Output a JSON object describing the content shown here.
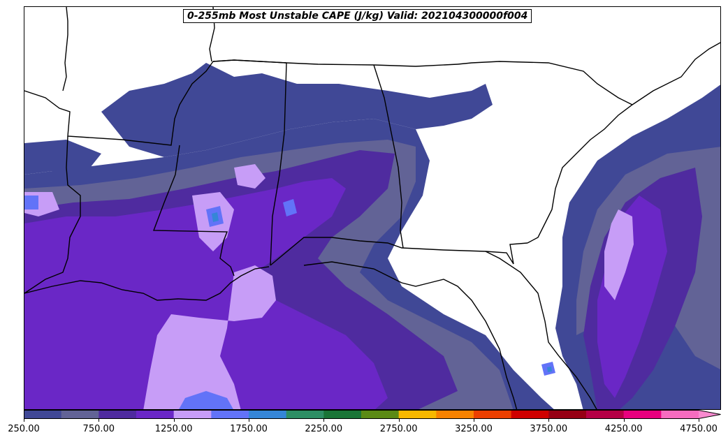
{
  "title": "0-255mb Most Unstable CAPE (J/kg) Valid: 202104300000f004",
  "colorbar": {
    "colors": [
      "#404896",
      "#626396",
      "#4f2b9f",
      "#6a27c6",
      "#c79df7",
      "#6273f8",
      "#3586d7",
      "#2e8e64",
      "#1a7436",
      "#5b8a15",
      "#f8b800",
      "#f88200",
      "#ec3f00",
      "#cf0000",
      "#960014",
      "#b50045",
      "#e8007e",
      "#f66cbf"
    ],
    "extend_color": "#f98bd0",
    "tick_labels": [
      "250.00",
      "750.00",
      "1250.00",
      "1750.00",
      "2250.00",
      "2750.00",
      "3250.00",
      "3750.00",
      "4250.00",
      "4750.00"
    ]
  },
  "map_colors": {
    "c250": "#404896",
    "c500": "#626396",
    "c750": "#4f2b9f",
    "c1000": "#6a27c6",
    "c1250": "#c79df7",
    "c1500": "#6273f8",
    "c1750": "#3586d7"
  }
}
